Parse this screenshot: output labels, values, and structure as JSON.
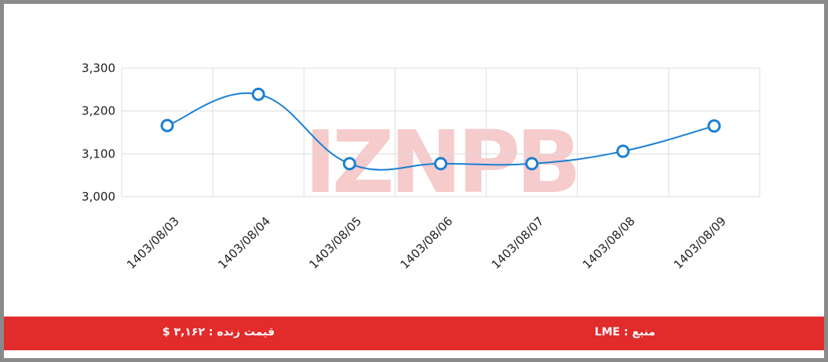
{
  "chart_data": {
    "type": "line",
    "watermark": "IZNPB",
    "categories": [
      "1403/08/03",
      "1403/08/04",
      "1403/08/05",
      "1403/08/06",
      "1403/08/07",
      "1403/08/08",
      "1403/08/09"
    ],
    "series": [
      {
        "name": "LME",
        "color": "#1a7fd4",
        "values": [
          3166,
          3239,
          3077,
          3077,
          3077,
          3106,
          3165
        ]
      }
    ],
    "ylim": [
      3000,
      3300
    ],
    "yticks": [
      {
        "value": 3000,
        "label": "3,000"
      },
      {
        "value": 3100,
        "label": "3,100"
      },
      {
        "value": 3200,
        "label": "3,200"
      },
      {
        "value": 3300,
        "label": "3,300"
      }
    ],
    "grid": true
  },
  "footer": {
    "price": "قیمت زنده : ۳,۱۶۲ $",
    "source": "منبع : LME"
  }
}
